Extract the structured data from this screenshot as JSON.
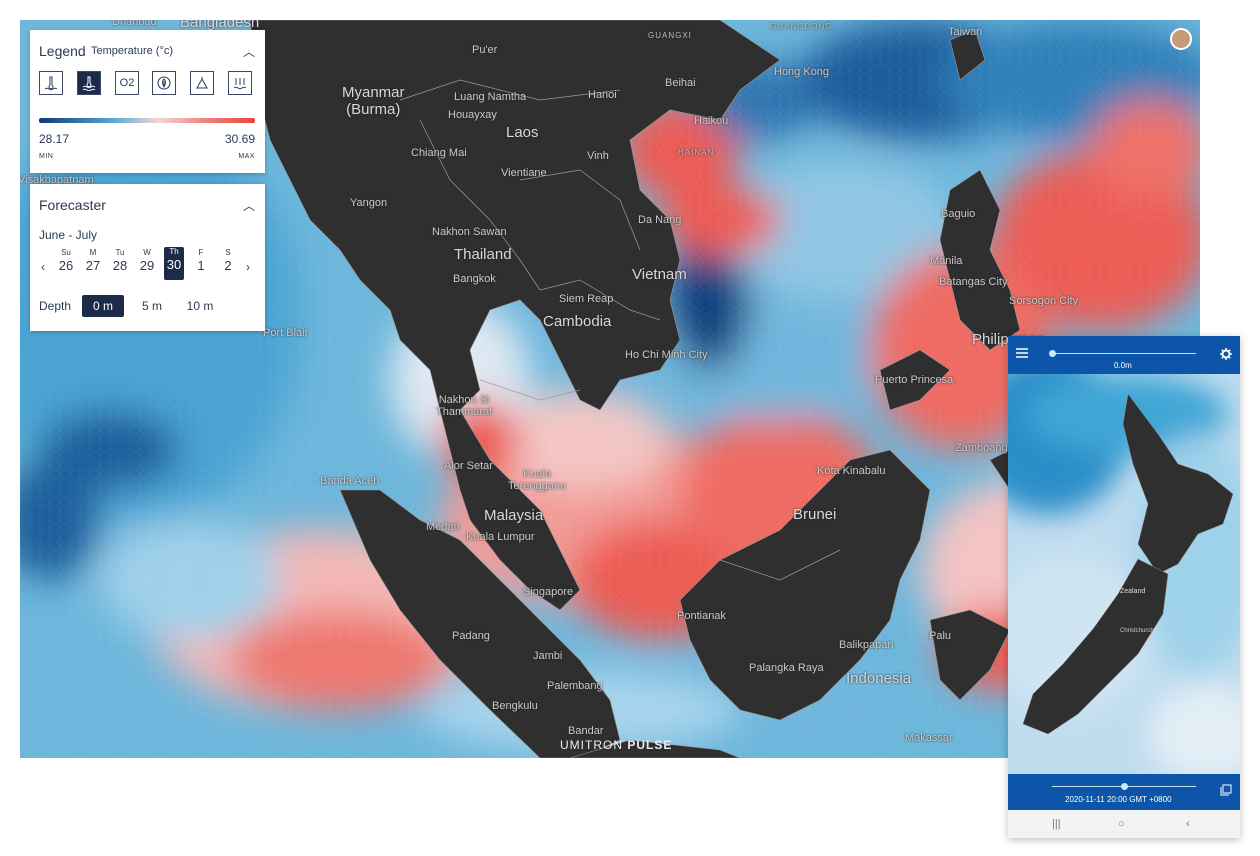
{
  "map": {
    "places": {
      "dhanbad": "Dhanbad",
      "bangladesh": "Bangladesh",
      "guangdong": "GUANGDONG",
      "guangxi": "GUANGXI",
      "taiwan": "Taiwan",
      "hongkong": "Hong Kong",
      "myanmar": "Myanmar\n(Burma)",
      "puer": "Pu'er",
      "beihai": "Beihai",
      "hanoi": "Hanoi",
      "haikou": "Haikou",
      "hainan": "HAINAN",
      "luangnamtha": "Luang Namtha",
      "houayxay": "Houayxay",
      "laos": "Laos",
      "chiangmai": "Chiang Mai",
      "vinh": "Vinh",
      "vientiane": "Vientiane",
      "visakhapatnam": "Visakhapatnam",
      "yangon": "Yangon",
      "danang": "Da Nang",
      "baguio": "Baguio",
      "nakhonsawan": "Nakhon Sawan",
      "thailand": "Thailand",
      "manila": "Manila",
      "vietnam": "Vietnam",
      "bangkok": "Bangkok",
      "batangas": "Batangas City",
      "sorsogon": "Sorsogon City",
      "siemreap": "Siem Reap",
      "cambodia": "Cambodia",
      "portblair": "Port Blair",
      "hcmc": "Ho Chi Minh City",
      "philippines": "Philippines",
      "puertoprincesa": "Puerto Princesa",
      "nakhonsithammarat": "Nakhon Si\nThammarat",
      "zamboanga": "Zamboanga",
      "alorsetar": "Alor Setar",
      "kualaterengganu": "Kuala\nTerengganu",
      "kotakinabalu": "Kota Kinabalu",
      "bandaaceh": "Banda Aceh",
      "malaysia": "Malaysia",
      "brunei": "Brunei",
      "medan": "Medan",
      "kualalumpur": "Kuala Lumpur",
      "singapore": "Singapore",
      "pontianak": "Pontianak",
      "padang": "Padang",
      "palu": "Palu",
      "balikpapan": "Balikpapan",
      "jambi": "Jambi",
      "palangkaraya": "Palangka Raya",
      "indonesia": "Indonesia",
      "palembang": "Palembang",
      "bengkulu": "Bengkulu",
      "bandar": "Bandar",
      "makassar": "Makassar"
    },
    "brand_left": "UMITRON",
    "brand_right": "PULSE"
  },
  "legend": {
    "title": "Legend",
    "subtitle": "Temperature (°c)",
    "layers": [
      {
        "icon": "thermometer-surface-icon"
      },
      {
        "icon": "thermometer-water-icon",
        "active": true
      },
      {
        "icon": "oxygen-icon",
        "label": "O2"
      },
      {
        "icon": "leaf-icon"
      },
      {
        "icon": "tide-icon"
      },
      {
        "icon": "depth-wave-icon"
      }
    ],
    "min_value": "28.17",
    "max_value": "30.69",
    "min_label": "MIN",
    "max_label": "MAX",
    "colors": {
      "cold": "#0d3b78",
      "mid": "#f2d7d7",
      "warm": "#e8433c"
    }
  },
  "forecaster": {
    "title": "Forecaster",
    "range": "June - July",
    "days": [
      {
        "name": "Su",
        "date": "26"
      },
      {
        "name": "M",
        "date": "27"
      },
      {
        "name": "Tu",
        "date": "28"
      },
      {
        "name": "W",
        "date": "29"
      },
      {
        "name": "Th",
        "date": "30"
      },
      {
        "name": "F",
        "date": "1"
      },
      {
        "name": "S",
        "date": "2"
      }
    ],
    "selected_day": "30",
    "prev": "‹",
    "next": "›",
    "depth_label": "Depth",
    "depths": [
      "0 m",
      "5 m",
      "10 m"
    ],
    "selected_depth": "0 m"
  },
  "phone": {
    "depth_value": "0.0m",
    "timestamp": "2020-11-11 20:00 GMT +0800",
    "places": {
      "newzealand": "New Zealand",
      "christchurch": "Christchurch"
    },
    "depth_fraction": 0.0,
    "time_fraction": 0.5
  }
}
